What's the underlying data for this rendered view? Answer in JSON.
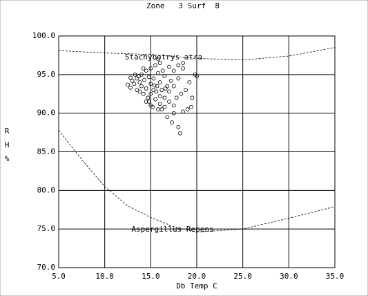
{
  "chart_data": {
    "type": "scatter",
    "title": "Zone   3 Surf  8",
    "xlabel": "Db Temp C",
    "ylabel": [
      "R",
      "H",
      "%"
    ],
    "xlim": [
      5,
      35
    ],
    "ylim": [
      70,
      100
    ],
    "xticks": [
      {
        "value": 5,
        "label": "5.0"
      },
      {
        "value": 10,
        "label": "10.0"
      },
      {
        "value": 15,
        "label": "15.0"
      },
      {
        "value": 20,
        "label": "20.0"
      },
      {
        "value": 25,
        "label": "25.0"
      },
      {
        "value": 30,
        "label": "30.0"
      },
      {
        "value": 35,
        "label": "35.0"
      }
    ],
    "yticks": [
      {
        "value": 70,
        "label": "70.0"
      },
      {
        "value": 75,
        "label": "75.0"
      },
      {
        "value": 80,
        "label": "80.0"
      },
      {
        "value": 85,
        "label": "85.0"
      },
      {
        "value": 90,
        "label": "90.0"
      },
      {
        "value": 95,
        "label": "95.0"
      },
      {
        "value": 100,
        "label": "100.0"
      }
    ],
    "grid": true,
    "color": "#000000",
    "points": {
      "x": [
        12.5,
        12.8,
        13.0,
        13.2,
        13.5,
        13.5,
        13.8,
        13.8,
        14.0,
        14.0,
        14.2,
        14.3,
        14.5,
        14.5,
        14.5,
        14.7,
        14.8,
        15.0,
        15.0,
        15.0,
        15.0,
        15.2,
        15.3,
        15.3,
        15.5,
        15.5,
        15.6,
        15.7,
        15.8,
        15.8,
        16.0,
        16.0,
        16.0,
        16.0,
        16.2,
        16.3,
        16.5,
        16.5,
        16.5,
        16.8,
        16.8,
        17.0,
        17.0,
        17.0,
        17.2,
        17.3,
        17.5,
        17.5,
        17.5,
        17.8,
        18.0,
        18.0,
        18.0,
        18.2,
        18.3,
        18.5,
        18.5,
        18.8,
        19.0,
        19.2,
        19.4,
        19.8,
        20.0,
        13.3,
        14.2,
        15.8,
        12.8,
        14.8,
        16.2,
        17.5,
        18.5,
        19.5,
        13.7,
        15.4,
        16.6
      ],
      "values": [
        93.7,
        93.3,
        94.2,
        93.8,
        93.0,
        94.5,
        92.8,
        94.0,
        93.5,
        95.0,
        92.5,
        94.3,
        91.5,
        93.2,
        95.5,
        92.0,
        94.7,
        91.0,
        92.5,
        93.8,
        95.8,
        90.8,
        93.0,
        94.5,
        91.8,
        96.2,
        92.8,
        93.5,
        90.5,
        95.2,
        91.2,
        92.2,
        94.0,
        96.5,
        93.0,
        95.5,
        90.8,
        92.0,
        94.8,
        93.5,
        89.5,
        91.5,
        96.0,
        92.8,
        94.2,
        88.8,
        91.0,
        93.5,
        95.5,
        92.0,
        96.2,
        88.2,
        94.5,
        87.4,
        92.5,
        90.2,
        95.8,
        93.0,
        90.5,
        94.0,
        90.8,
        95.0,
        94.8,
        95.0,
        95.8,
        97.0,
        94.6,
        91.5,
        90.5,
        90.0,
        96.5,
        92.0,
        94.8,
        93.6,
        93.2
      ]
    },
    "curves": [
      {
        "name": "Stachybotrys atra",
        "x": [
          5,
          10,
          15,
          20,
          25,
          30,
          35
        ],
        "values": [
          98.1,
          97.8,
          97.6,
          97.1,
          96.9,
          97.4,
          98.5
        ]
      },
      {
        "name": "Aspergillus Repens",
        "x": [
          5,
          7.5,
          10,
          12.5,
          15,
          17.5,
          20,
          25,
          30,
          35
        ],
        "values": [
          87.8,
          84.0,
          80.5,
          78.0,
          76.5,
          75.3,
          74.6,
          75.0,
          76.4,
          77.9
        ]
      }
    ]
  }
}
